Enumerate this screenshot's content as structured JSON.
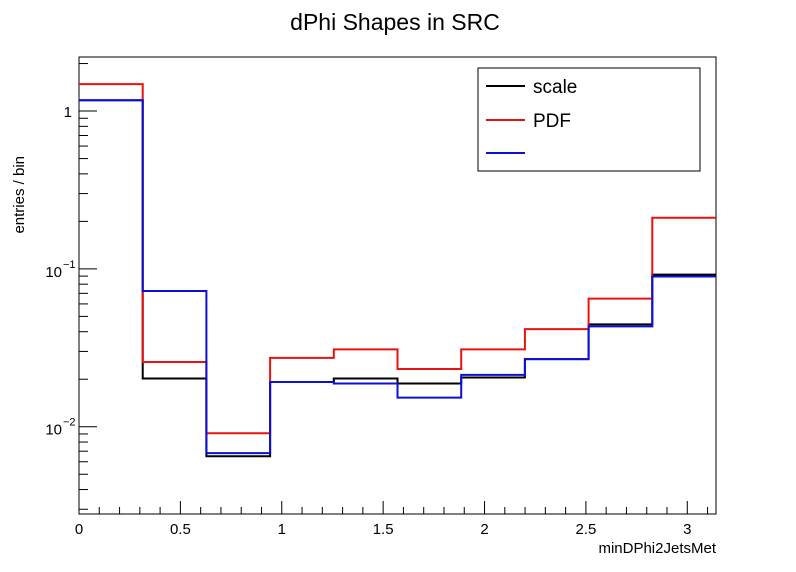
{
  "chart_data": {
    "type": "line",
    "title": "dPhi Shapes in SRC",
    "xlabel": "minDPhi2JetsMet",
    "ylabel": "entries / bin",
    "xlim": [
      0,
      3.1416
    ],
    "ylim": [
      0.0028,
      2.2
    ],
    "yscale": "log",
    "grid": false,
    "legend_position": "top-right",
    "bin_edges": [
      0,
      0.3142,
      0.6283,
      0.9425,
      1.2566,
      1.5708,
      1.885,
      2.1991,
      2.5133,
      2.8274,
      3.1416
    ],
    "x_ticks": [
      {
        "v": 0,
        "label": "0"
      },
      {
        "v": 0.5,
        "label": "0.5"
      },
      {
        "v": 1,
        "label": "1"
      },
      {
        "v": 1.5,
        "label": "1.5"
      },
      {
        "v": 2,
        "label": "2"
      },
      {
        "v": 2.5,
        "label": "2.5"
      },
      {
        "v": 3,
        "label": "3"
      }
    ],
    "y_ticks": [
      {
        "v": 1,
        "base": "1",
        "exp": ""
      },
      {
        "v": 0.1,
        "base": "10",
        "exp": "−1"
      },
      {
        "v": 0.01,
        "base": "10",
        "exp": "−2"
      }
    ],
    "series": [
      {
        "name": "scale",
        "color": "#000000",
        "values": [
          1.17,
          0.0202,
          0.0065,
          0.0192,
          0.0202,
          0.0188,
          0.0205,
          0.0268,
          0.0445,
          0.092
        ]
      },
      {
        "name": "PDF",
        "color": "#e8120e",
        "values": [
          1.48,
          0.0257,
          0.0091,
          0.0273,
          0.0309,
          0.0232,
          0.0309,
          0.0415,
          0.0648,
          0.211
        ]
      },
      {
        "name": "",
        "color": "#0b11d4",
        "values": [
          1.17,
          0.0725,
          0.0068,
          0.0192,
          0.0188,
          0.0153,
          0.0213,
          0.0268,
          0.0432,
          0.0895
        ]
      }
    ]
  }
}
